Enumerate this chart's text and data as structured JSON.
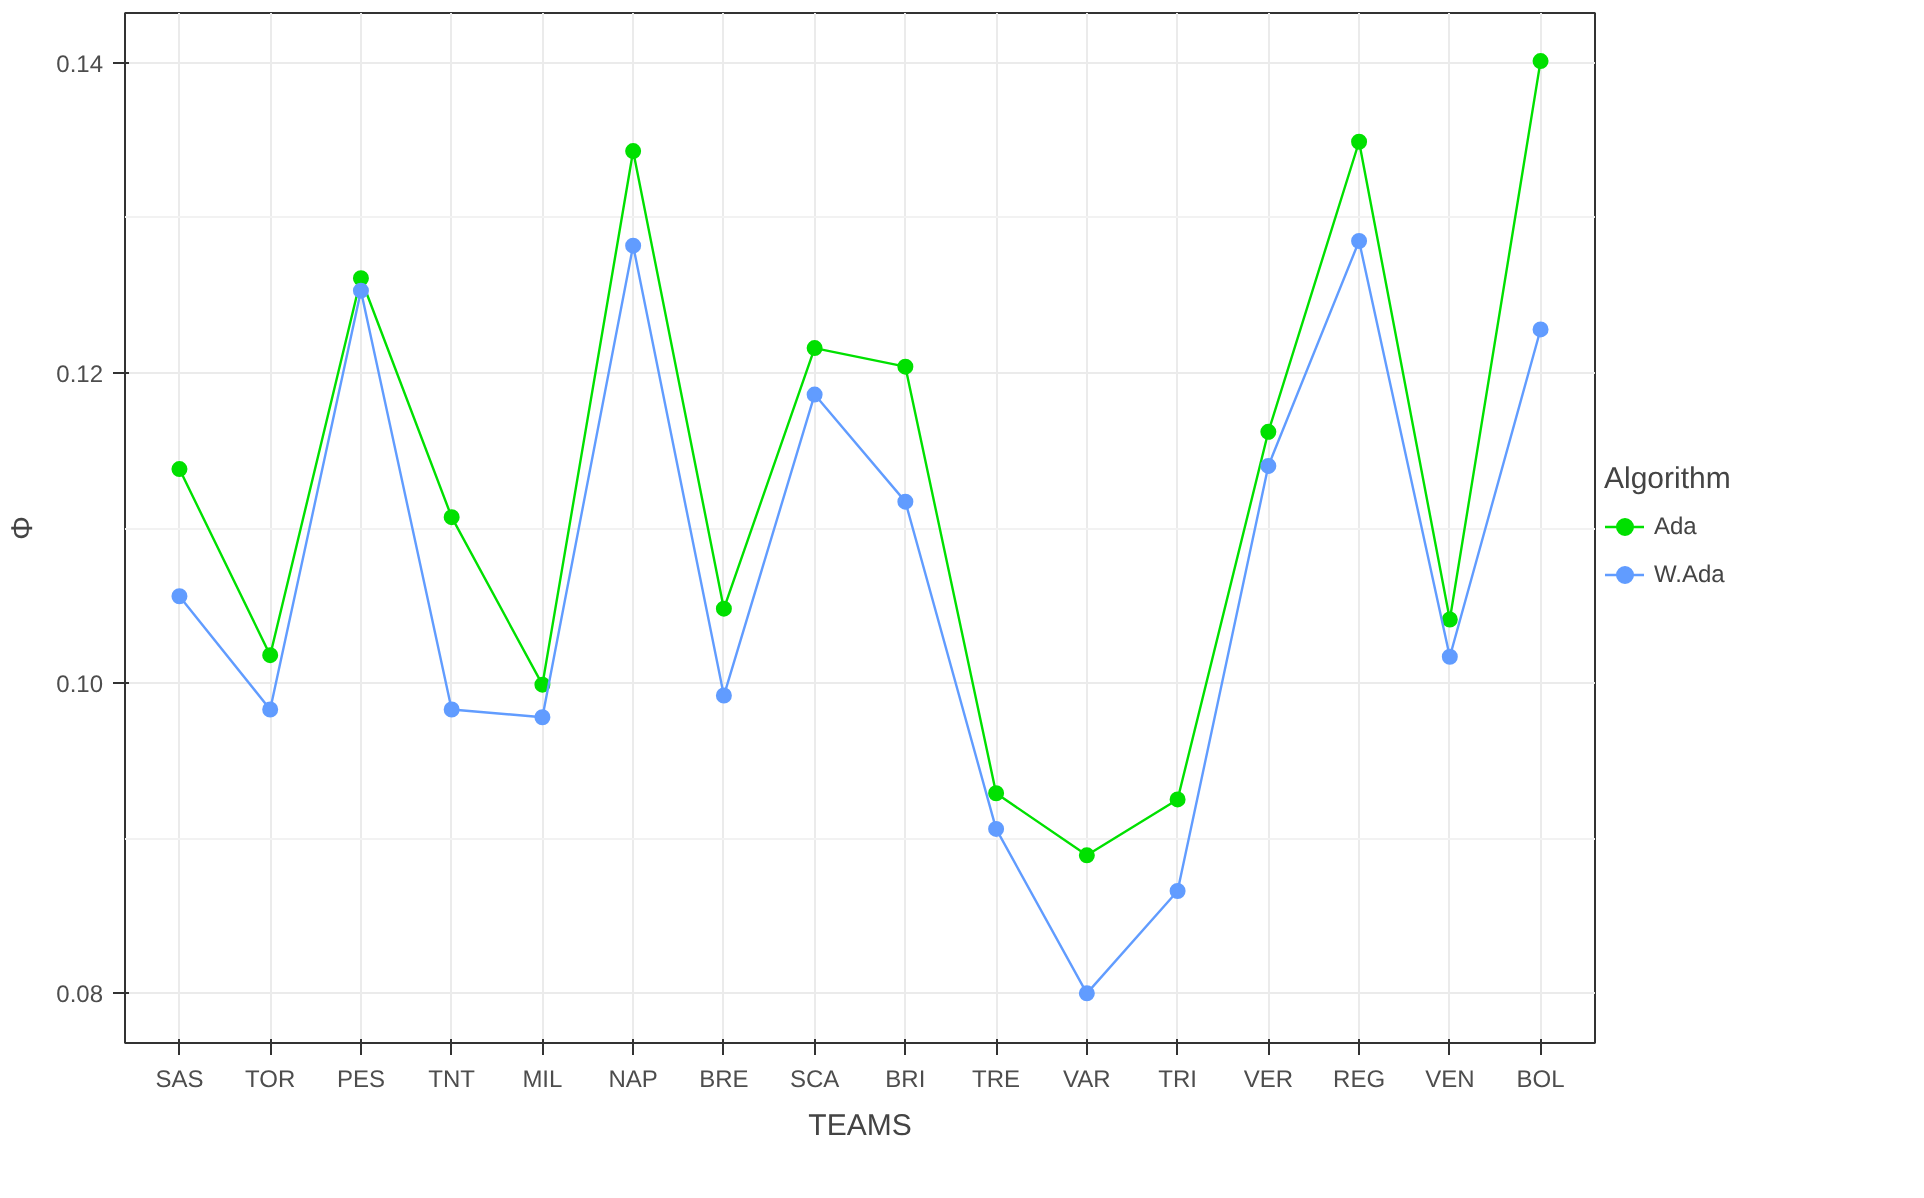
{
  "chart_data": {
    "type": "line",
    "xlabel": "TEAMS",
    "ylabel": "Φ",
    "legend_title": "Algorithm",
    "categories": [
      "SAS",
      "TOR",
      "PES",
      "TNT",
      "MIL",
      "NAP",
      "BRE",
      "SCA",
      "BRI",
      "TRE",
      "VAR",
      "TRI",
      "VER",
      "REG",
      "VEN",
      "BOL"
    ],
    "series": [
      {
        "name": "Ada",
        "color": "#00e000",
        "values": [
          0.1138,
          0.1018,
          0.1261,
          0.1107,
          0.0999,
          0.1343,
          0.1048,
          0.1216,
          0.1204,
          0.0929,
          0.0889,
          0.0925,
          0.1162,
          0.1349,
          0.1041,
          0.1401
        ]
      },
      {
        "name": "W.Ada",
        "color": "#619cff",
        "values": [
          0.1056,
          0.0983,
          0.1253,
          0.0983,
          0.0978,
          0.1282,
          0.0992,
          0.1186,
          0.1117,
          0.0906,
          0.08,
          0.0866,
          0.114,
          0.1285,
          0.1017,
          0.1228
        ]
      }
    ],
    "ylim": [
      0.0768,
      0.1432
    ],
    "yticks": [
      {
        "value": 0.08,
        "label": "0.08"
      },
      {
        "value": 0.1,
        "label": "0.10"
      },
      {
        "value": 0.12,
        "label": "0.12"
      },
      {
        "value": 0.14,
        "label": "0.14"
      }
    ],
    "grid": true,
    "legend": "right",
    "marker": "circle",
    "line_style": "solid"
  }
}
